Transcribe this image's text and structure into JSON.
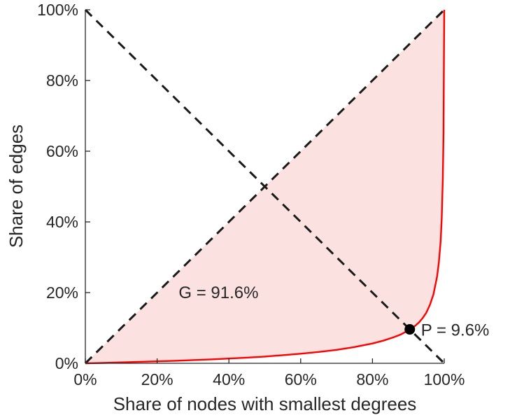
{
  "chart_data": {
    "type": "line",
    "title": "",
    "xlabel": "Share of nodes with smallest degrees",
    "ylabel": "Share of edges",
    "xlim": [
      0,
      100
    ],
    "ylim": [
      0,
      100
    ],
    "grid": false,
    "legend": "none",
    "colors": {
      "curve": "#ff0000",
      "area_fill": "#fbe1e0",
      "dashed": "#1a1a1a",
      "marker": "#000000",
      "axis": "#262626"
    },
    "x_ticks": [
      {
        "value": 0,
        "label": "0%"
      },
      {
        "value": 20,
        "label": "20%"
      },
      {
        "value": 40,
        "label": "40%"
      },
      {
        "value": 60,
        "label": "60%"
      },
      {
        "value": 80,
        "label": "80%"
      },
      {
        "value": 100,
        "label": "100%"
      }
    ],
    "y_ticks": [
      {
        "value": 0,
        "label": "0%"
      },
      {
        "value": 20,
        "label": "20%"
      },
      {
        "value": 40,
        "label": "40%"
      },
      {
        "value": 60,
        "label": "60%"
      },
      {
        "value": 80,
        "label": "80%"
      },
      {
        "value": 100,
        "label": "100%"
      }
    ],
    "series": [
      {
        "name": "equality-diagonal",
        "type": "dashed-line",
        "x": [
          0,
          100
        ],
        "y": [
          0,
          100
        ]
      },
      {
        "name": "anti-diagonal",
        "type": "dashed-line",
        "x": [
          0,
          100
        ],
        "y": [
          100,
          0
        ]
      },
      {
        "name": "lorenz-curve",
        "type": "line",
        "color": "#ff0000",
        "x": [
          0,
          5,
          10,
          15,
          20,
          25,
          30,
          35,
          40,
          45,
          50,
          55,
          60,
          65,
          70,
          75,
          80,
          83,
          86,
          88,
          90,
          90.4,
          91,
          92,
          93,
          94,
          95,
          96,
          97,
          98,
          98.5,
          99,
          99.3,
          99.6,
          99.8,
          100
        ],
        "y": [
          0,
          0.1,
          0.25,
          0.4,
          0.55,
          0.7,
          0.9,
          1.1,
          1.35,
          1.6,
          1.9,
          2.3,
          2.7,
          3.2,
          3.8,
          4.6,
          5.6,
          6.4,
          7.4,
          8.2,
          9.3,
          9.6,
          9.9,
          10.7,
          11.6,
          12.8,
          14.3,
          16.5,
          19.5,
          24.5,
          28.5,
          34.5,
          41,
          52,
          65,
          100
        ]
      }
    ],
    "annotations": [
      {
        "id": "gini-label",
        "text": "G = 91.6%",
        "x": 26,
        "y": 20,
        "marker": false,
        "dx": 0,
        "dy": 0
      },
      {
        "id": "p-label",
        "text": "P = 9.6%",
        "x": 90.4,
        "y": 9.6,
        "marker": true,
        "dx": 16,
        "dy": 1
      }
    ],
    "gini_coefficient": "91.6%",
    "p_value": "9.6%"
  }
}
